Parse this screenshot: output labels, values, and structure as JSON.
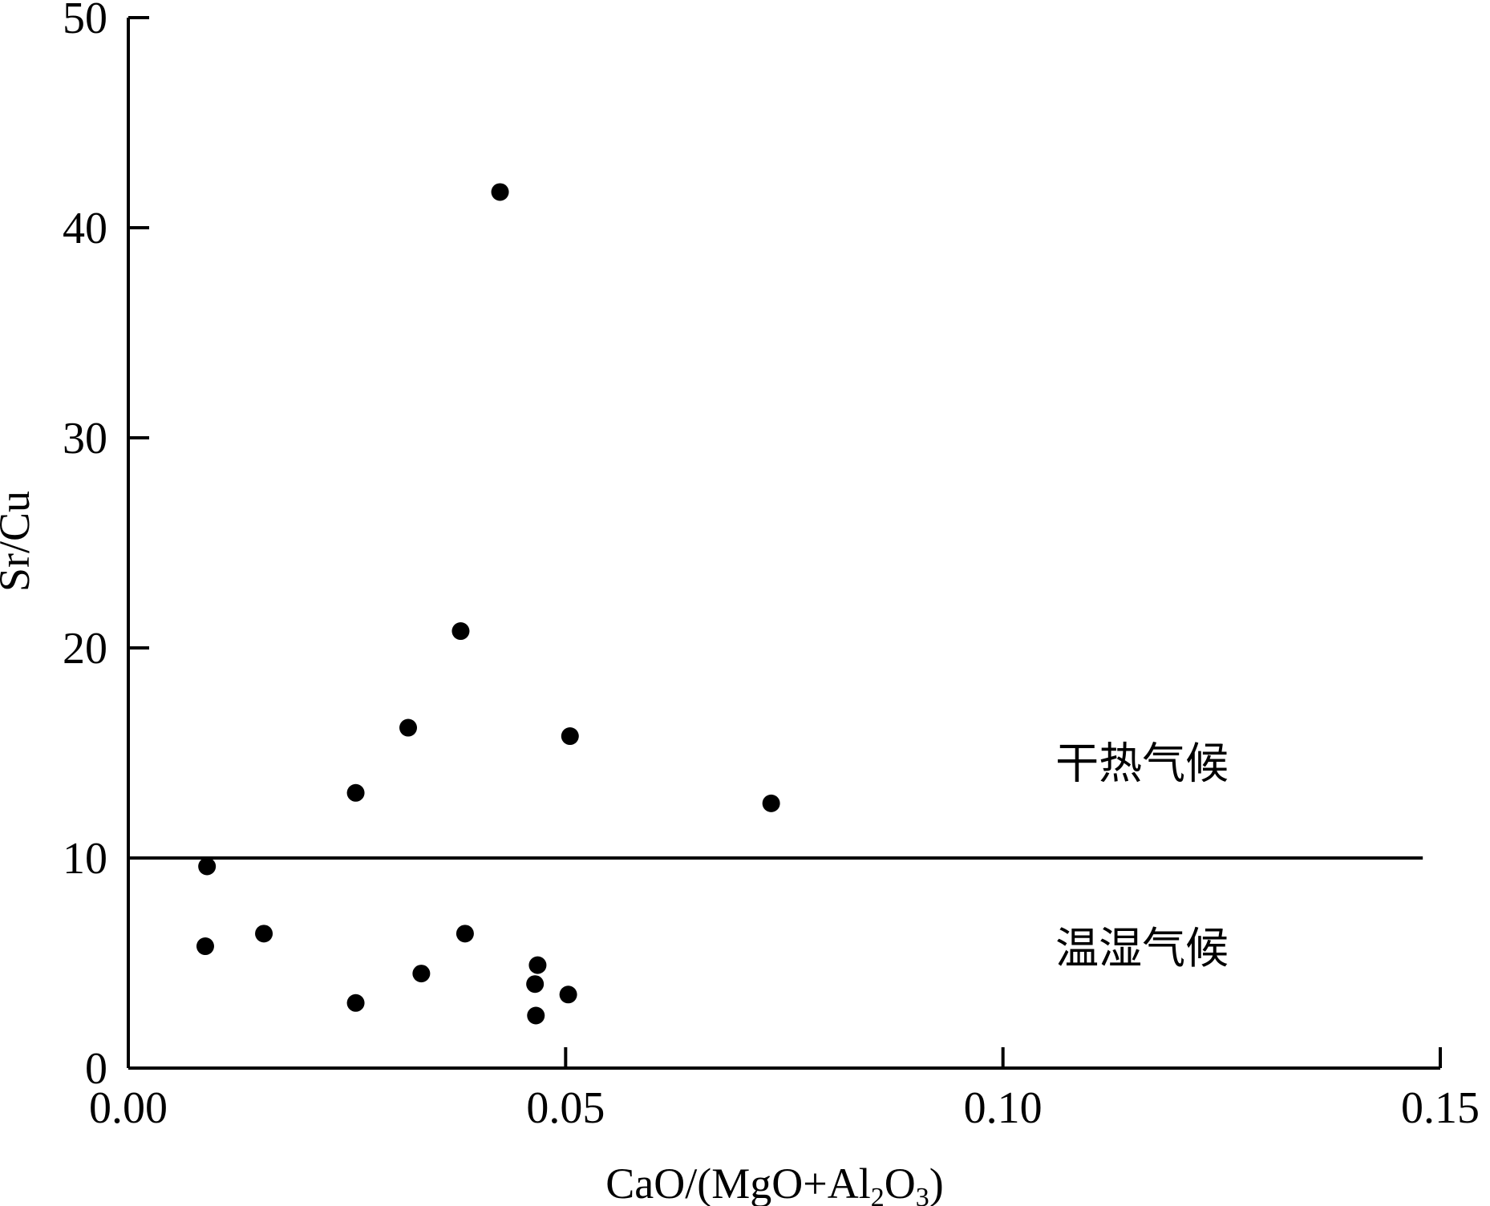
{
  "chart_data": {
    "type": "scatter",
    "xlabel": {
      "text": "CaO/(MgO+Al2O3)",
      "parts": [
        "CaO/(MgO+Al",
        "2",
        "O",
        "3",
        ")"
      ]
    },
    "ylabel": "Sr/Cu",
    "xlim": [
      0,
      0.15
    ],
    "ylim": [
      0,
      50
    ],
    "xticks": [
      0.0,
      0.05,
      0.1,
      0.15
    ],
    "xtick_labels": [
      "0.00",
      "0.05",
      "0.10",
      "0.15"
    ],
    "yticks": [
      0,
      10,
      20,
      30,
      40,
      50
    ],
    "ytick_labels": [
      "0",
      "10",
      "20",
      "30",
      "40",
      "50"
    ],
    "grid": false,
    "reference_line": {
      "y": 10,
      "x_range": [
        0,
        0.148
      ]
    },
    "annotations": [
      {
        "text": "干热气候",
        "x": 0.106,
        "y": 13.8
      },
      {
        "text": "温湿气候",
        "x": 0.106,
        "y": 5.0
      }
    ],
    "points": [
      {
        "x": 0.0425,
        "y": 41.7
      },
      {
        "x": 0.038,
        "y": 20.8
      },
      {
        "x": 0.032,
        "y": 16.2
      },
      {
        "x": 0.0505,
        "y": 15.8
      },
      {
        "x": 0.026,
        "y": 13.1
      },
      {
        "x": 0.0735,
        "y": 12.6
      },
      {
        "x": 0.009,
        "y": 9.6
      },
      {
        "x": 0.0155,
        "y": 6.4
      },
      {
        "x": 0.0385,
        "y": 6.4
      },
      {
        "x": 0.0088,
        "y": 5.8
      },
      {
        "x": 0.0468,
        "y": 4.9
      },
      {
        "x": 0.0335,
        "y": 4.5
      },
      {
        "x": 0.0465,
        "y": 4.0
      },
      {
        "x": 0.0503,
        "y": 3.5
      },
      {
        "x": 0.026,
        "y": 3.1
      },
      {
        "x": 0.0466,
        "y": 2.5
      }
    ],
    "marker_color": "#000000"
  }
}
